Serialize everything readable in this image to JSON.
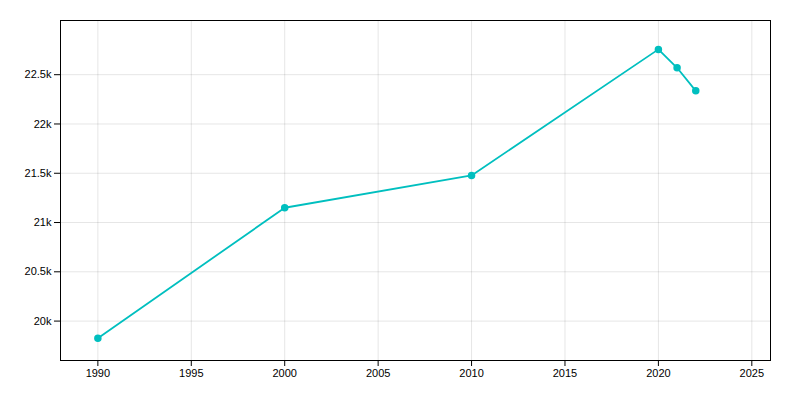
{
  "chart_data": {
    "type": "line",
    "x": [
      1990,
      2000,
      2010,
      2020,
      2021,
      2022
    ],
    "values": [
      19826,
      21150,
      21478,
      22757,
      22570,
      22336
    ],
    "color": "#00BFBF",
    "marker": "circle",
    "xlim": [
      1988,
      2026
    ],
    "xticks": [
      1990,
      1995,
      2000,
      2005,
      2010,
      2015,
      2020,
      2025
    ],
    "ylim": [
      19600,
      23050
    ],
    "yticks": [
      {
        "value": 20000,
        "label": "20k"
      },
      {
        "value": 20500,
        "label": "20.5k"
      },
      {
        "value": 21000,
        "label": "21k"
      },
      {
        "value": 21500,
        "label": "21.5k"
      },
      {
        "value": 22000,
        "label": "22k"
      },
      {
        "value": 22500,
        "label": "22.5k"
      }
    ],
    "grid": true
  }
}
